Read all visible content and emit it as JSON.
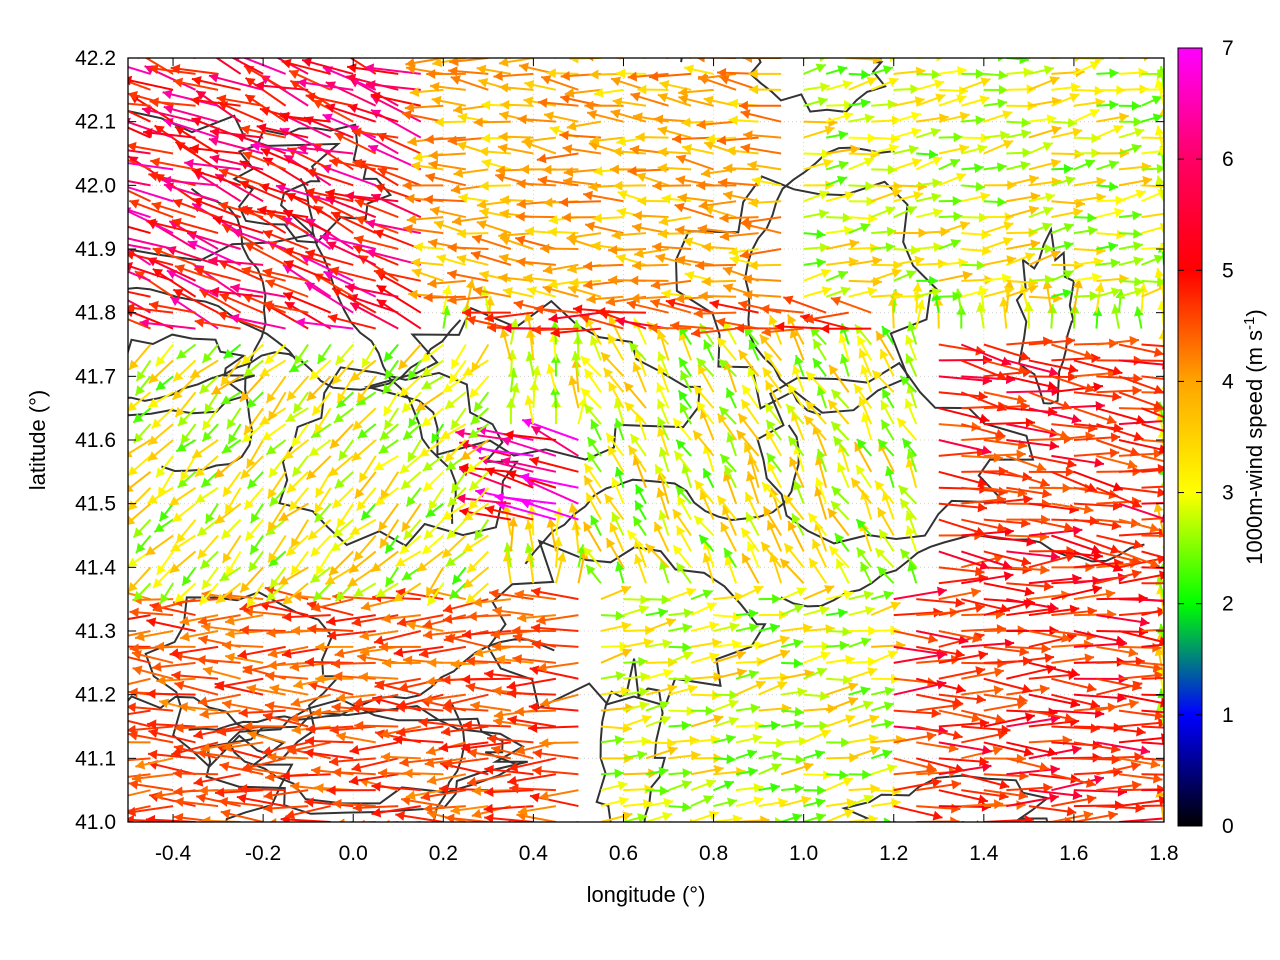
{
  "chart_data": {
    "type": "vector-field",
    "xlabel": "longitude (°)",
    "ylabel": "latitude (°)",
    "xlim": [
      -0.5,
      1.8
    ],
    "ylim": [
      41.0,
      42.2
    ],
    "xticks": [
      -0.4,
      -0.2,
      0.0,
      0.2,
      0.4,
      0.6,
      0.8,
      1.0,
      1.2,
      1.4,
      1.6,
      1.8
    ],
    "xtick_labels": [
      "-0.4",
      "-0.2",
      "0.0",
      "0.2",
      "0.4",
      "0.6",
      "0.8",
      "1.0",
      "1.2",
      "1.4",
      "1.6",
      "1.8"
    ],
    "yticks": [
      41.0,
      41.1,
      41.2,
      41.3,
      41.4,
      41.5,
      41.6,
      41.7,
      41.8,
      41.9,
      42.0,
      42.1,
      42.2
    ],
    "ytick_labels": [
      "41.0",
      "41.1",
      "41.2",
      "41.3",
      "41.4",
      "41.5",
      "41.6",
      "41.7",
      "41.8",
      "41.9",
      "42.0",
      "42.1",
      "42.2"
    ],
    "grid": true,
    "colorbar": {
      "label_main": "1000m-wind speed (m s",
      "label_sup": "-1",
      "label_close": ")",
      "min": 0,
      "max": 7,
      "ticks": [
        0,
        1,
        2,
        3,
        4,
        5,
        6,
        7
      ],
      "tick_labels": [
        "0",
        "1",
        "2",
        "3",
        "4",
        "5",
        "6",
        "7"
      ],
      "colors": [
        "#000000",
        "#0000ff",
        "#00ff00",
        "#ffff00",
        "#ffa500",
        "#ff0000",
        "#ff00ff"
      ]
    },
    "contour_color": "#333333",
    "regions": [
      {
        "lon": [
          -0.5,
          0.15
        ],
        "lat": [
          41.75,
          42.2
        ],
        "speed": 6.0,
        "dir_deg": 160
      },
      {
        "lon": [
          0.15,
          1.0
        ],
        "lat": [
          41.8,
          42.2
        ],
        "speed": 4.0,
        "dir_deg": 175
      },
      {
        "lon": [
          1.0,
          1.8
        ],
        "lat": [
          41.8,
          42.2
        ],
        "speed": 3.0,
        "dir_deg": 10
      },
      {
        "lon": [
          -0.5,
          0.3
        ],
        "lat": [
          41.35,
          41.75
        ],
        "speed": 3.0,
        "dir_deg": 225
      },
      {
        "lon": [
          0.3,
          1.2
        ],
        "lat": [
          41.75,
          41.85
        ],
        "speed": 5.5,
        "dir_deg": 175
      },
      {
        "lon": [
          0.5,
          1.3
        ],
        "lat": [
          41.35,
          41.75
        ],
        "speed": 3.0,
        "dir_deg": 120
      },
      {
        "lon": [
          1.2,
          1.8
        ],
        "lat": [
          41.4,
          41.75
        ],
        "speed": 5.5,
        "dir_deg": -8
      },
      {
        "lon": [
          0.2,
          0.5
        ],
        "lat": [
          41.45,
          41.6
        ],
        "speed": 6.5,
        "dir_deg": 160
      },
      {
        "lon": [
          -0.5,
          0.5
        ],
        "lat": [
          41.0,
          41.35
        ],
        "speed": 5.0,
        "dir_deg": 180
      },
      {
        "lon": [
          0.5,
          1.2
        ],
        "lat": [
          41.0,
          41.35
        ],
        "speed": 3.0,
        "dir_deg": 10
      },
      {
        "lon": [
          1.2,
          1.8
        ],
        "lat": [
          41.0,
          41.4
        ],
        "speed": 5.5,
        "dir_deg": 0
      }
    ]
  }
}
